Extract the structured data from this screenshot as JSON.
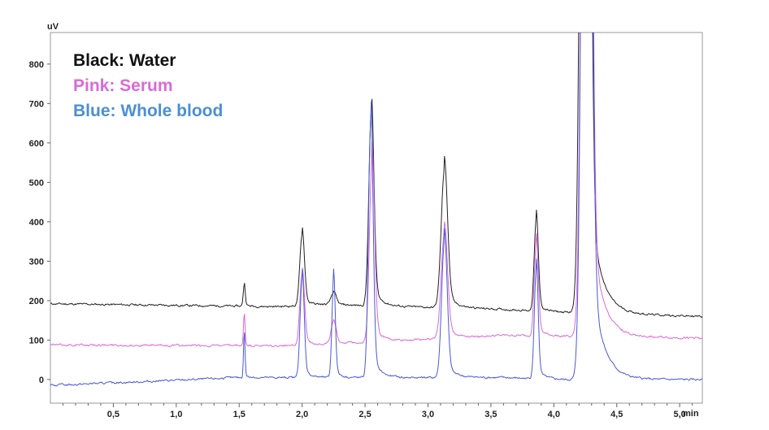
{
  "chart_data": {
    "type": "line",
    "y_unit": "uV",
    "x_unit": "min",
    "xlim": [
      0.0,
      5.18
    ],
    "ylim": [
      -60,
      880
    ],
    "x_ticks": [
      {
        "value": 0.5,
        "label": "0,5"
      },
      {
        "value": 1.0,
        "label": "1,0"
      },
      {
        "value": 1.5,
        "label": "1,5"
      },
      {
        "value": 2.0,
        "label": "2,0"
      },
      {
        "value": 2.5,
        "label": "2,5"
      },
      {
        "value": 3.0,
        "label": "3,0"
      },
      {
        "value": 3.5,
        "label": "3,5"
      },
      {
        "value": 4.0,
        "label": "4,0"
      },
      {
        "value": 4.5,
        "label": "4,5"
      },
      {
        "value": 5.0,
        "label": "5,0"
      }
    ],
    "y_ticks": [
      {
        "value": 0,
        "label": "0"
      },
      {
        "value": 100,
        "label": "100"
      },
      {
        "value": 200,
        "label": "200"
      },
      {
        "value": 300,
        "label": "300"
      },
      {
        "value": 400,
        "label": "400"
      },
      {
        "value": 500,
        "label": "500"
      },
      {
        "value": 600,
        "label": "600"
      },
      {
        "value": 700,
        "label": "700"
      },
      {
        "value": 800,
        "label": "800"
      }
    ],
    "legend": [
      {
        "text": "Black: Water",
        "color": "#111111"
      },
      {
        "text": "Pink: Serum",
        "color": "#d96ad9"
      },
      {
        "text": "Blue: Whole blood",
        "color": "#4a8fd6"
      }
    ],
    "series": [
      {
        "color": "#222222",
        "baseline": [
          [
            0.0,
            192
          ],
          [
            1.8,
            185
          ],
          [
            2.2,
            190
          ],
          [
            3.6,
            178
          ],
          [
            4.1,
            170
          ],
          [
            5.18,
            160
          ]
        ],
        "peaks": [
          [
            1.54,
            55,
            0.008
          ],
          [
            2.0,
            180,
            0.018
          ],
          [
            2.25,
            30,
            0.02
          ],
          [
            2.55,
            490,
            0.02
          ],
          [
            3.13,
            345,
            0.025
          ],
          [
            3.86,
            230,
            0.016
          ],
          [
            4.25,
            3400,
            0.03
          ]
        ],
        "noise": 5
      },
      {
        "color": "#d96ad9",
        "baseline": [
          [
            0.0,
            88
          ],
          [
            1.8,
            85
          ],
          [
            2.2,
            90
          ],
          [
            3.6,
            112
          ],
          [
            4.1,
            110
          ],
          [
            5.18,
            105
          ]
        ],
        "peaks": [
          [
            1.54,
            80,
            0.006
          ],
          [
            2.0,
            180,
            0.018
          ],
          [
            2.25,
            55,
            0.02
          ],
          [
            2.555,
            455,
            0.02
          ],
          [
            3.13,
            265,
            0.025
          ],
          [
            3.86,
            235,
            0.016
          ],
          [
            4.26,
            3400,
            0.03
          ]
        ],
        "noise": 5
      },
      {
        "color": "#4a59d8",
        "baseline": [
          [
            0.0,
            -15
          ],
          [
            1.5,
            5
          ],
          [
            2.2,
            5
          ],
          [
            3.6,
            5
          ],
          [
            4.1,
            0
          ],
          [
            5.18,
            0
          ]
        ],
        "peaks": [
          [
            1.54,
            112,
            0.006
          ],
          [
            2.0,
            250,
            0.016
          ],
          [
            2.25,
            248,
            0.013
          ],
          [
            2.545,
            650,
            0.018
          ],
          [
            3.13,
            340,
            0.022
          ],
          [
            3.86,
            275,
            0.015
          ],
          [
            4.26,
            3400,
            0.03
          ]
        ],
        "noise": 5
      }
    ]
  }
}
